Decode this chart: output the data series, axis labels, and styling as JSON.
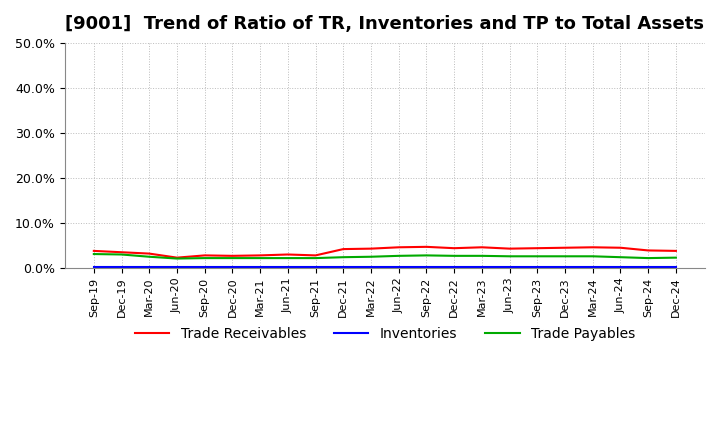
{
  "title": "[9001]  Trend of Ratio of TR, Inventories and TP to Total Assets",
  "x_labels": [
    "Sep-19",
    "Dec-19",
    "Mar-20",
    "Jun-20",
    "Sep-20",
    "Dec-20",
    "Mar-21",
    "Jun-21",
    "Sep-21",
    "Dec-21",
    "Mar-22",
    "Jun-22",
    "Sep-22",
    "Dec-22",
    "Mar-23",
    "Jun-23",
    "Sep-23",
    "Dec-23",
    "Mar-24",
    "Jun-24",
    "Sep-24",
    "Dec-24"
  ],
  "trade_receivables": [
    3.8,
    3.5,
    3.2,
    2.3,
    2.8,
    2.7,
    2.8,
    3.0,
    2.8,
    4.2,
    4.3,
    4.6,
    4.7,
    4.4,
    4.6,
    4.3,
    4.4,
    4.5,
    4.6,
    4.5,
    3.9,
    3.8
  ],
  "inventories": [
    0.3,
    0.3,
    0.3,
    0.3,
    0.3,
    0.3,
    0.3,
    0.3,
    0.3,
    0.3,
    0.3,
    0.3,
    0.3,
    0.3,
    0.3,
    0.3,
    0.3,
    0.3,
    0.3,
    0.3,
    0.3,
    0.3
  ],
  "trade_payables": [
    3.1,
    3.0,
    2.5,
    2.1,
    2.2,
    2.2,
    2.2,
    2.2,
    2.2,
    2.4,
    2.5,
    2.7,
    2.8,
    2.7,
    2.7,
    2.6,
    2.6,
    2.6,
    2.6,
    2.4,
    2.2,
    2.3
  ],
  "colors": {
    "trade_receivables": "#FF0000",
    "inventories": "#0000FF",
    "trade_payables": "#00AA00"
  },
  "legend_labels": [
    "Trade Receivables",
    "Inventories",
    "Trade Payables"
  ],
  "ylim": [
    0,
    50
  ],
  "yticks": [
    0,
    10,
    20,
    30,
    40,
    50
  ],
  "background_color": "#FFFFFF",
  "plot_bg_color": "#FFFFFF",
  "grid_color": "#AAAAAA",
  "title_fontsize": 13,
  "legend_fontsize": 10
}
